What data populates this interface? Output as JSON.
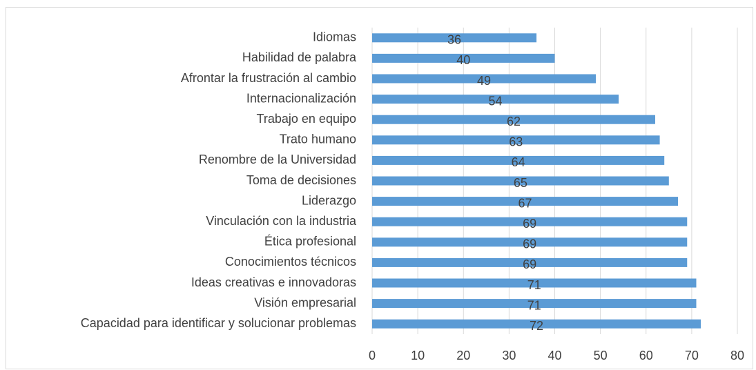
{
  "chart_data": {
    "type": "bar",
    "orientation": "horizontal",
    "categories": [
      "Idiomas",
      "Habilidad de palabra",
      "Afrontar la frustración al cambio",
      "Internacionalización",
      "Trabajo en equipo",
      "Trato humano",
      "Renombre de la Universidad",
      "Toma de decisiones",
      "Liderazgo",
      "Vinculación con la industria",
      "Ética profesional",
      "Conocimientos técnicos",
      "Ideas creativas e innovadoras",
      "Visión empresarial",
      "Capacidad para identificar y solucionar problemas"
    ],
    "values": [
      36,
      40,
      49,
      54,
      62,
      63,
      64,
      65,
      67,
      69,
      69,
      69,
      71,
      71,
      72
    ],
    "color": "#5b9bd5",
    "xlim": [
      0,
      80
    ],
    "xticks": [
      0,
      10,
      20,
      30,
      40,
      50,
      60,
      70,
      80
    ],
    "grid": true
  }
}
